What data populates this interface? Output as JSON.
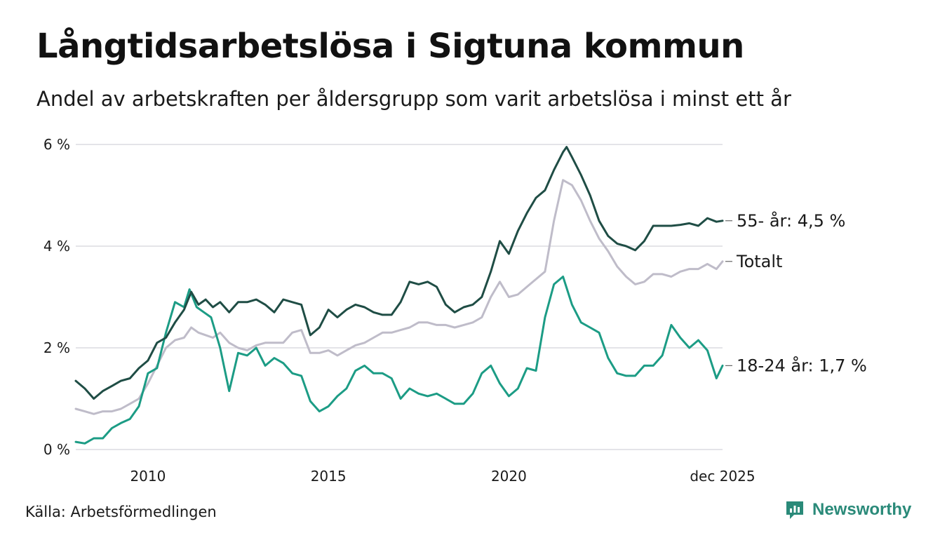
{
  "title": "Långtidsarbetslösa i Sigtuna kommun",
  "subtitle": "Andel av arbetskraften per åldersgrupp som varit arbetslösa i minst ett år",
  "source": "Källa: Arbetsförmedlingen",
  "brand": {
    "name": "Newsworthy",
    "icon": "newsworthy-logo-icon",
    "color": "#2a8a79"
  },
  "chart_data": {
    "type": "line",
    "title": "Långtidsarbetslösa i Sigtuna kommun",
    "xlabel": "",
    "ylabel": "",
    "ylim": [
      0,
      6
    ],
    "xlim": [
      2008.0,
      2025.92
    ],
    "grid": true,
    "y_ticks": [
      {
        "value": 0,
        "label": "0 %"
      },
      {
        "value": 2,
        "label": "2 %"
      },
      {
        "value": 4,
        "label": "4 %"
      },
      {
        "value": 6,
        "label": "6 %"
      }
    ],
    "x_ticks": [
      {
        "value": 2010,
        "label": "2010"
      },
      {
        "value": 2015,
        "label": "2015"
      },
      {
        "value": 2020,
        "label": "2020"
      },
      {
        "value": 2025.92,
        "label": "dec 2025"
      }
    ],
    "series": [
      {
        "name": "55- år",
        "end_label": "55- år: 4,5 %",
        "color": "#1f4d45",
        "points": [
          [
            2008.0,
            1.35
          ],
          [
            2008.25,
            1.2
          ],
          [
            2008.5,
            1.0
          ],
          [
            2008.75,
            1.15
          ],
          [
            2009.0,
            1.25
          ],
          [
            2009.25,
            1.35
          ],
          [
            2009.5,
            1.4
          ],
          [
            2009.75,
            1.6
          ],
          [
            2010.0,
            1.75
          ],
          [
            2010.25,
            2.1
          ],
          [
            2010.5,
            2.2
          ],
          [
            2010.75,
            2.5
          ],
          [
            2011.0,
            2.75
          ],
          [
            2011.2,
            3.1
          ],
          [
            2011.4,
            2.85
          ],
          [
            2011.6,
            2.95
          ],
          [
            2011.8,
            2.8
          ],
          [
            2012.0,
            2.9
          ],
          [
            2012.25,
            2.7
          ],
          [
            2012.5,
            2.9
          ],
          [
            2012.75,
            2.9
          ],
          [
            2013.0,
            2.95
          ],
          [
            2013.25,
            2.85
          ],
          [
            2013.5,
            2.7
          ],
          [
            2013.75,
            2.95
          ],
          [
            2014.0,
            2.9
          ],
          [
            2014.25,
            2.85
          ],
          [
            2014.5,
            2.25
          ],
          [
            2014.75,
            2.4
          ],
          [
            2015.0,
            2.75
          ],
          [
            2015.25,
            2.6
          ],
          [
            2015.5,
            2.75
          ],
          [
            2015.75,
            2.85
          ],
          [
            2016.0,
            2.8
          ],
          [
            2016.25,
            2.7
          ],
          [
            2016.5,
            2.65
          ],
          [
            2016.75,
            2.65
          ],
          [
            2017.0,
            2.9
          ],
          [
            2017.25,
            3.3
          ],
          [
            2017.5,
            3.25
          ],
          [
            2017.75,
            3.3
          ],
          [
            2018.0,
            3.2
          ],
          [
            2018.25,
            2.85
          ],
          [
            2018.5,
            2.7
          ],
          [
            2018.75,
            2.8
          ],
          [
            2019.0,
            2.85
          ],
          [
            2019.25,
            3.0
          ],
          [
            2019.5,
            3.5
          ],
          [
            2019.75,
            4.1
          ],
          [
            2020.0,
            3.85
          ],
          [
            2020.25,
            4.3
          ],
          [
            2020.5,
            4.65
          ],
          [
            2020.75,
            4.95
          ],
          [
            2021.0,
            5.1
          ],
          [
            2021.25,
            5.5
          ],
          [
            2021.5,
            5.85
          ],
          [
            2021.6,
            5.95
          ],
          [
            2021.75,
            5.75
          ],
          [
            2022.0,
            5.4
          ],
          [
            2022.25,
            5.0
          ],
          [
            2022.5,
            4.5
          ],
          [
            2022.75,
            4.2
          ],
          [
            2023.0,
            4.05
          ],
          [
            2023.25,
            4.0
          ],
          [
            2023.5,
            3.92
          ],
          [
            2023.75,
            4.1
          ],
          [
            2024.0,
            4.4
          ],
          [
            2024.25,
            4.4
          ],
          [
            2024.5,
            4.4
          ],
          [
            2024.75,
            4.42
          ],
          [
            2025.0,
            4.45
          ],
          [
            2025.25,
            4.4
          ],
          [
            2025.5,
            4.55
          ],
          [
            2025.75,
            4.48
          ],
          [
            2025.92,
            4.5
          ]
        ]
      },
      {
        "name": "Totalt",
        "end_label": "Totalt",
        "color": "#bfbcc9",
        "points": [
          [
            2008.0,
            0.8
          ],
          [
            2008.25,
            0.75
          ],
          [
            2008.5,
            0.7
          ],
          [
            2008.75,
            0.75
          ],
          [
            2009.0,
            0.75
          ],
          [
            2009.25,
            0.8
          ],
          [
            2009.5,
            0.9
          ],
          [
            2009.75,
            1.0
          ],
          [
            2010.0,
            1.3
          ],
          [
            2010.25,
            1.65
          ],
          [
            2010.5,
            2.0
          ],
          [
            2010.75,
            2.15
          ],
          [
            2011.0,
            2.2
          ],
          [
            2011.2,
            2.4
          ],
          [
            2011.4,
            2.3
          ],
          [
            2011.6,
            2.25
          ],
          [
            2011.8,
            2.2
          ],
          [
            2012.0,
            2.3
          ],
          [
            2012.25,
            2.1
          ],
          [
            2012.5,
            2.0
          ],
          [
            2012.75,
            1.95
          ],
          [
            2013.0,
            2.05
          ],
          [
            2013.25,
            2.1
          ],
          [
            2013.5,
            2.1
          ],
          [
            2013.75,
            2.1
          ],
          [
            2014.0,
            2.3
          ],
          [
            2014.25,
            2.35
          ],
          [
            2014.5,
            1.9
          ],
          [
            2014.75,
            1.9
          ],
          [
            2015.0,
            1.95
          ],
          [
            2015.25,
            1.85
          ],
          [
            2015.5,
            1.95
          ],
          [
            2015.75,
            2.05
          ],
          [
            2016.0,
            2.1
          ],
          [
            2016.25,
            2.2
          ],
          [
            2016.5,
            2.3
          ],
          [
            2016.75,
            2.3
          ],
          [
            2017.0,
            2.35
          ],
          [
            2017.25,
            2.4
          ],
          [
            2017.5,
            2.5
          ],
          [
            2017.75,
            2.5
          ],
          [
            2018.0,
            2.45
          ],
          [
            2018.25,
            2.45
          ],
          [
            2018.5,
            2.4
          ],
          [
            2018.75,
            2.45
          ],
          [
            2019.0,
            2.5
          ],
          [
            2019.25,
            2.6
          ],
          [
            2019.5,
            3.0
          ],
          [
            2019.75,
            3.3
          ],
          [
            2020.0,
            3.0
          ],
          [
            2020.25,
            3.05
          ],
          [
            2020.5,
            3.2
          ],
          [
            2020.75,
            3.35
          ],
          [
            2021.0,
            3.5
          ],
          [
            2021.25,
            4.5
          ],
          [
            2021.5,
            5.3
          ],
          [
            2021.75,
            5.2
          ],
          [
            2022.0,
            4.9
          ],
          [
            2022.25,
            4.5
          ],
          [
            2022.5,
            4.15
          ],
          [
            2022.75,
            3.9
          ],
          [
            2023.0,
            3.6
          ],
          [
            2023.25,
            3.4
          ],
          [
            2023.5,
            3.25
          ],
          [
            2023.75,
            3.3
          ],
          [
            2024.0,
            3.45
          ],
          [
            2024.25,
            3.45
          ],
          [
            2024.5,
            3.4
          ],
          [
            2024.75,
            3.5
          ],
          [
            2025.0,
            3.55
          ],
          [
            2025.25,
            3.55
          ],
          [
            2025.5,
            3.65
          ],
          [
            2025.75,
            3.55
          ],
          [
            2025.92,
            3.7
          ]
        ]
      },
      {
        "name": "18-24 år",
        "end_label": "18-24 år: 1,7 %",
        "color": "#1c9c85",
        "points": [
          [
            2008.0,
            0.15
          ],
          [
            2008.25,
            0.12
          ],
          [
            2008.5,
            0.22
          ],
          [
            2008.75,
            0.22
          ],
          [
            2009.0,
            0.42
          ],
          [
            2009.25,
            0.52
          ],
          [
            2009.5,
            0.6
          ],
          [
            2009.75,
            0.85
          ],
          [
            2010.0,
            1.5
          ],
          [
            2010.25,
            1.6
          ],
          [
            2010.5,
            2.3
          ],
          [
            2010.75,
            2.9
          ],
          [
            2011.0,
            2.8
          ],
          [
            2011.15,
            3.15
          ],
          [
            2011.35,
            2.8
          ],
          [
            2011.55,
            2.7
          ],
          [
            2011.75,
            2.6
          ],
          [
            2012.0,
            2.0
          ],
          [
            2012.25,
            1.15
          ],
          [
            2012.5,
            1.9
          ],
          [
            2012.75,
            1.85
          ],
          [
            2013.0,
            2.0
          ],
          [
            2013.25,
            1.65
          ],
          [
            2013.5,
            1.8
          ],
          [
            2013.75,
            1.7
          ],
          [
            2014.0,
            1.5
          ],
          [
            2014.25,
            1.45
          ],
          [
            2014.5,
            0.95
          ],
          [
            2014.75,
            0.75
          ],
          [
            2015.0,
            0.85
          ],
          [
            2015.25,
            1.05
          ],
          [
            2015.5,
            1.2
          ],
          [
            2015.75,
            1.55
          ],
          [
            2016.0,
            1.65
          ],
          [
            2016.25,
            1.5
          ],
          [
            2016.5,
            1.5
          ],
          [
            2016.75,
            1.4
          ],
          [
            2017.0,
            1.0
          ],
          [
            2017.25,
            1.2
          ],
          [
            2017.5,
            1.1
          ],
          [
            2017.75,
            1.05
          ],
          [
            2018.0,
            1.1
          ],
          [
            2018.25,
            1.0
          ],
          [
            2018.5,
            0.9
          ],
          [
            2018.75,
            0.9
          ],
          [
            2019.0,
            1.1
          ],
          [
            2019.25,
            1.5
          ],
          [
            2019.5,
            1.65
          ],
          [
            2019.75,
            1.3
          ],
          [
            2020.0,
            1.05
          ],
          [
            2020.25,
            1.2
          ],
          [
            2020.5,
            1.6
          ],
          [
            2020.75,
            1.55
          ],
          [
            2021.0,
            2.6
          ],
          [
            2021.25,
            3.25
          ],
          [
            2021.5,
            3.4
          ],
          [
            2021.75,
            2.85
          ],
          [
            2022.0,
            2.5
          ],
          [
            2022.25,
            2.4
          ],
          [
            2022.5,
            2.3
          ],
          [
            2022.75,
            1.8
          ],
          [
            2023.0,
            1.5
          ],
          [
            2023.25,
            1.45
          ],
          [
            2023.5,
            1.45
          ],
          [
            2023.75,
            1.65
          ],
          [
            2024.0,
            1.65
          ],
          [
            2024.25,
            1.85
          ],
          [
            2024.5,
            2.45
          ],
          [
            2024.75,
            2.2
          ],
          [
            2025.0,
            2.0
          ],
          [
            2025.25,
            2.15
          ],
          [
            2025.5,
            1.95
          ],
          [
            2025.75,
            1.4
          ],
          [
            2025.92,
            1.65
          ]
        ]
      }
    ]
  }
}
